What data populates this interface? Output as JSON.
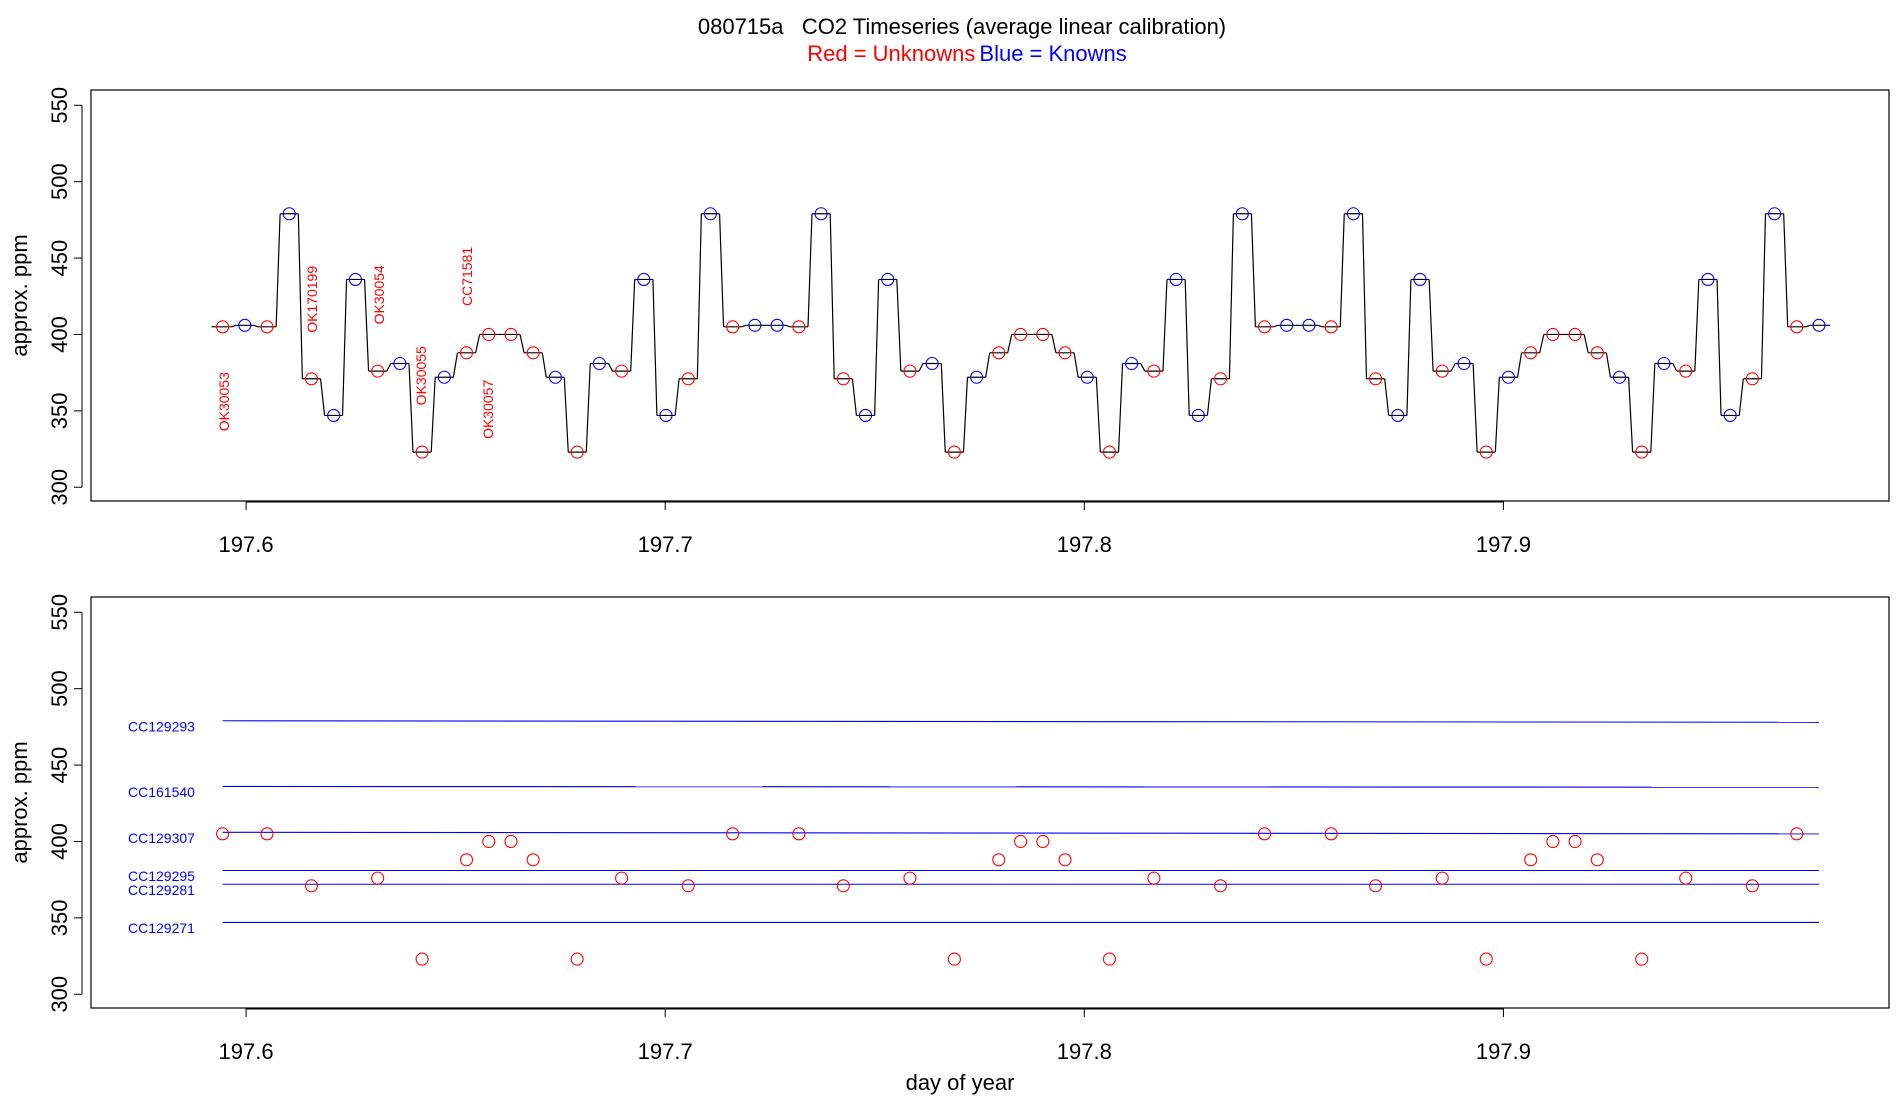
{
  "chart_data": [
    {
      "type": "line",
      "title": "080715a   CO2 Timeseries (average linear calibration)",
      "legend": [
        {
          "label": "Red = Unknowns",
          "color": "red"
        },
        {
          "label": "Blue = Knowns",
          "color": "blue"
        }
      ],
      "ylabel": "approx. ppm",
      "xlim": [
        197.563,
        197.992
      ],
      "ylim": [
        291,
        560
      ],
      "xticks": [
        197.6,
        197.7,
        197.8,
        197.9
      ],
      "yticks": [
        300,
        350,
        400,
        450,
        500,
        550
      ],
      "trace_color": "black",
      "x": [
        197.5944,
        197.5997,
        197.605,
        197.6103,
        197.6156,
        197.6209,
        197.6261,
        197.6314,
        197.6367,
        197.642,
        197.6473,
        197.6526,
        197.6579,
        197.6632,
        197.6685,
        197.6738,
        197.679,
        197.6843,
        197.6896,
        197.6949,
        197.7002,
        197.7055,
        197.7108,
        197.7161,
        197.7214,
        197.7267,
        197.7319,
        197.7372,
        197.7425,
        197.7478,
        197.7531,
        197.7584,
        197.7637,
        197.769,
        197.7743,
        197.7796,
        197.7848,
        197.7901,
        197.7954,
        197.8007,
        197.806,
        197.8113,
        197.8166,
        197.8219,
        197.8272,
        197.8325,
        197.8377,
        197.843,
        197.8483,
        197.8536,
        197.8589,
        197.8642,
        197.8695,
        197.8748,
        197.8801,
        197.8854,
        197.8906,
        197.8959,
        197.9012,
        197.9065,
        197.9118,
        197.9171,
        197.9224,
        197.9277,
        197.933,
        197.9383,
        197.9435,
        197.9488,
        197.9541,
        197.9594,
        197.9647,
        197.97,
        197.9753
      ],
      "values": [
        405,
        406,
        405,
        479,
        371,
        347,
        436,
        376,
        381,
        323,
        372,
        388,
        400,
        400,
        388,
        372,
        323,
        381,
        376,
        436,
        347,
        371,
        479,
        405,
        406,
        406,
        405,
        479,
        371,
        347,
        436,
        376,
        381,
        323,
        372,
        388,
        400,
        400,
        388,
        372,
        323,
        381,
        376,
        436,
        347,
        371,
        479,
        405,
        406,
        406,
        405,
        479,
        371,
        347,
        436,
        376,
        381,
        323,
        372,
        388,
        400,
        400,
        388,
        372,
        323,
        381,
        376,
        436,
        347,
        371,
        479,
        405,
        406
      ],
      "marker_colors": [
        "red",
        "blue",
        "red",
        "blue",
        "red",
        "blue",
        "blue",
        "red",
        "blue",
        "red",
        "blue",
        "red",
        "red",
        "red",
        "red",
        "blue",
        "red",
        "blue",
        "red",
        "blue",
        "blue",
        "red",
        "blue",
        "red",
        "blue",
        "blue",
        "red",
        "blue",
        "red",
        "blue",
        "blue",
        "red",
        "blue",
        "red",
        "blue",
        "red",
        "red",
        "red",
        "red",
        "blue",
        "red",
        "blue",
        "red",
        "blue",
        "blue",
        "red",
        "blue",
        "red",
        "blue",
        "blue",
        "red",
        "blue",
        "red",
        "blue",
        "blue",
        "red",
        "blue",
        "red",
        "blue",
        "red",
        "red",
        "red",
        "red",
        "blue",
        "red",
        "blue",
        "red",
        "blue",
        "blue",
        "red",
        "blue",
        "red",
        "blue"
      ],
      "annotations": [
        {
          "text": "OK30053",
          "x": 197.595,
          "y": 356,
          "color": "red"
        },
        {
          "text": "OK170199",
          "x": 197.616,
          "y": 423,
          "color": "red"
        },
        {
          "text": "OK30054",
          "x": 197.632,
          "y": 426,
          "color": "red"
        },
        {
          "text": "OK30055",
          "x": 197.642,
          "y": 373,
          "color": "red"
        },
        {
          "text": "CC71581",
          "x": 197.653,
          "y": 438,
          "color": "red"
        },
        {
          "text": "OK30057",
          "x": 197.658,
          "y": 351,
          "color": "red"
        }
      ]
    },
    {
      "type": "scatter",
      "ylabel": "approx. ppm",
      "xlabel": "day of year",
      "xlim": [
        197.563,
        197.992
      ],
      "ylim": [
        291,
        560
      ],
      "xticks": [
        197.6,
        197.7,
        197.8,
        197.9
      ],
      "yticks": [
        300,
        350,
        400,
        450,
        500,
        550
      ],
      "series": [
        {
          "color": "red",
          "x": [
            197.5944,
            197.605,
            197.6156,
            197.6314,
            197.642,
            197.6526,
            197.6579,
            197.6632,
            197.6685,
            197.679,
            197.6896,
            197.7055,
            197.7161,
            197.7319,
            197.7425,
            197.7584,
            197.769,
            197.7796,
            197.7848,
            197.7901,
            197.7954,
            197.806,
            197.8166,
            197.8325,
            197.843,
            197.8589,
            197.8695,
            197.8854,
            197.8959,
            197.9065,
            197.9118,
            197.9171,
            197.9224,
            197.933,
            197.9435,
            197.9594,
            197.97
          ],
          "values": [
            405,
            405,
            371,
            376,
            323,
            388,
            400,
            400,
            388,
            323,
            376,
            371,
            405,
            405,
            371,
            376,
            323,
            388,
            400,
            400,
            388,
            323,
            376,
            371,
            405,
            405,
            371,
            376,
            323,
            388,
            400,
            400,
            388,
            323,
            376,
            371,
            405
          ]
        }
      ],
      "reference_lines": [
        {
          "name": "CC129293",
          "color": "blue",
          "x": [
            197.5944,
            197.9753
          ],
          "values": [
            479,
            478
          ]
        },
        {
          "name": "CC161540",
          "color": "blue",
          "x": [
            197.5944,
            197.9753
          ],
          "values": [
            436,
            435.5
          ]
        },
        {
          "name": "CC129307",
          "color": "blue",
          "x": [
            197.5944,
            197.9753
          ],
          "values": [
            406,
            405
          ]
        },
        {
          "name": "CC129295",
          "color": "blue",
          "x": [
            197.5944,
            197.9753
          ],
          "values": [
            381,
            381
          ]
        },
        {
          "name": "CC129281",
          "color": "blue",
          "x": [
            197.5944,
            197.9753
          ],
          "values": [
            372,
            372
          ]
        },
        {
          "name": "CC129271",
          "color": "blue",
          "x": [
            197.5944,
            197.9753
          ],
          "values": [
            347,
            347
          ]
        }
      ]
    }
  ]
}
